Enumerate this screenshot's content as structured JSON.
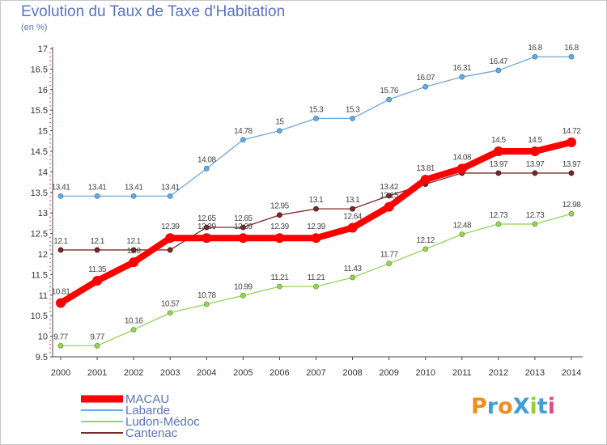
{
  "chart_data": {
    "type": "line",
    "title": "Evolution du Taux de Taxe d'Habitation",
    "unit_label": "(en %)",
    "x": [
      "2000",
      "2001",
      "2002",
      "2003",
      "2004",
      "2005",
      "2006",
      "2007",
      "2008",
      "2009",
      "2010",
      "2011",
      "2012",
      "2013",
      "2014"
    ],
    "ylim": [
      9.5,
      17
    ],
    "yticks": [
      "9.5",
      "10",
      "10.5",
      "11",
      "11.5",
      "12",
      "12.5",
      "13",
      "13.5",
      "14",
      "14.5",
      "15",
      "15.5",
      "16",
      "16.5",
      "17"
    ],
    "grid": false,
    "legend_position": "bottom-left",
    "series": [
      {
        "name": "Labarde",
        "color": "#6fa8dc",
        "values": [
          13.41,
          13.41,
          13.41,
          13.41,
          14.08,
          14.78,
          15,
          15.3,
          15.3,
          15.76,
          16.07,
          16.31,
          16.47,
          16.8,
          16.8
        ],
        "labels": [
          "13.41",
          "13.41",
          "13.41",
          "13.41",
          "14.08",
          "14.78",
          "15",
          "15.3",
          "15.3",
          "15.76",
          "16.07",
          "16.31",
          "16.47",
          "16.8",
          "16.8"
        ]
      },
      {
        "name": "Cantenac",
        "color": "#7b2828",
        "values": [
          12.1,
          12.1,
          12.1,
          12.1,
          12.65,
          12.65,
          12.95,
          13.1,
          13.1,
          13.42,
          13.7,
          13.97,
          13.97,
          13.97,
          13.97
        ],
        "labels": [
          "12.1",
          "12.1",
          "12.1",
          "",
          "12.65",
          "12.65",
          "12.95",
          "13.1",
          "13.1",
          "13.42",
          "",
          "",
          "13.97",
          "13.97",
          "13.97"
        ]
      },
      {
        "name": "Ludon-Médoc",
        "color": "#96d45a",
        "values": [
          9.77,
          9.77,
          10.16,
          10.57,
          10.78,
          10.99,
          11.21,
          11.21,
          11.43,
          11.77,
          12.12,
          12.48,
          12.73,
          12.73,
          12.98
        ],
        "labels": [
          "9.77",
          "9.77",
          "10.16",
          "10.57",
          "10.78",
          "10.99",
          "11.21",
          "11.21",
          "11.43",
          "11.77",
          "12.12",
          "12.48",
          "12.73",
          "12.73",
          "12.98"
        ]
      },
      {
        "name": "MACAU",
        "color": "#ff0000",
        "values": [
          10.81,
          11.35,
          11.8,
          12.39,
          12.39,
          12.39,
          12.39,
          12.39,
          12.64,
          13.15,
          13.81,
          14.08,
          14.5,
          14.5,
          14.72
        ],
        "labels": [
          "10.81",
          "11.35",
          "11.8",
          "12.39",
          "12.39",
          "12.39",
          "12.39",
          "12.39",
          "12.64",
          "13.15",
          "13.81",
          "14.08",
          "14.5",
          "14.5",
          "14.72"
        ]
      }
    ],
    "legend": [
      "MACAU",
      "Labarde",
      "Ludon-Médoc",
      "Cantenac"
    ]
  },
  "branding": {
    "logo_text": "ProXiti",
    "logo_colors": [
      "#f08c1e",
      "#3fa0d8",
      "#f08c1e",
      "#3fa0d8",
      "#9acd32",
      "#3fa0d8",
      "#e04a8a"
    ]
  }
}
